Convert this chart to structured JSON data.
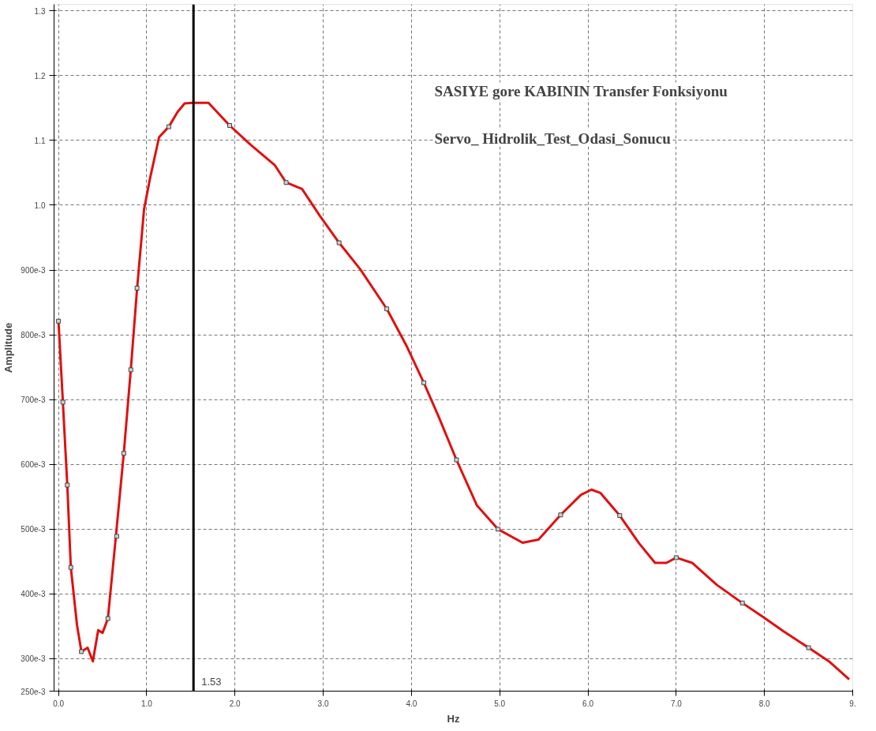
{
  "chart_data": {
    "type": "line",
    "xlabel": "Hz",
    "ylabel": "Amplitude",
    "annotations": [
      "SASIYE gore KABININ Transfer Fonksiyonu",
      "Servo_ Hidrolik_Test_Odasi_Sonucu"
    ],
    "xlim": [
      -0.05,
      9.0
    ],
    "ylim": [
      0.25,
      1.31
    ],
    "xticks": [
      {
        "value": 0,
        "label": "0.0"
      },
      {
        "value": 1,
        "label": "1.0"
      },
      {
        "value": 2,
        "label": "2.0"
      },
      {
        "value": 3,
        "label": "3.0"
      },
      {
        "value": 4,
        "label": "4.0"
      },
      {
        "value": 5,
        "label": "5.0"
      },
      {
        "value": 6,
        "label": "6.0"
      },
      {
        "value": 7,
        "label": "7.0"
      },
      {
        "value": 8,
        "label": "8.0"
      },
      {
        "value": 9,
        "label": "9."
      }
    ],
    "yticks": [
      {
        "value": 0.25,
        "label": "250e-3"
      },
      {
        "value": 0.3,
        "label": "300e-3"
      },
      {
        "value": 0.4,
        "label": "400e-3"
      },
      {
        "value": 0.5,
        "label": "500e-3"
      },
      {
        "value": 0.6,
        "label": "600e-3"
      },
      {
        "value": 0.7,
        "label": "700e-3"
      },
      {
        "value": 0.8,
        "label": "800e-3"
      },
      {
        "value": 0.9,
        "label": "900e-3"
      },
      {
        "value": 1.0,
        "label": "1.0"
      },
      {
        "value": 1.1,
        "label": "1.1"
      },
      {
        "value": 1.2,
        "label": "1.2"
      },
      {
        "value": 1.3,
        "label": "1.3"
      }
    ],
    "grid": true,
    "line_style": "solid",
    "ref_lines": [
      {
        "axis": "x",
        "value": 1.53,
        "label": "1.53",
        "color": "#000000"
      }
    ],
    "series": [
      {
        "color": "#e01010",
        "marker": "none",
        "x": [
          0,
          0.05,
          0.1,
          0.14,
          0.21,
          0.26,
          0.33,
          0.39,
          0.45,
          0.5,
          0.56,
          0.65,
          0.74,
          0.82,
          0.89,
          0.97,
          1.04,
          1.14,
          1.25,
          1.35,
          1.43,
          1.52,
          1.7,
          1.94,
          2.18,
          2.45,
          2.58,
          2.76,
          2.96,
          3.18,
          3.42,
          3.72,
          3.94,
          4.14,
          4.31,
          4.51,
          4.74,
          4.98,
          5.26,
          5.44,
          5.69,
          5.92,
          6.04,
          6.14,
          6.36,
          6.58,
          6.76,
          6.89,
          7.0,
          7.18,
          7.46,
          7.75,
          7.99,
          8.21,
          8.5,
          8.74,
          8.96
        ],
        "values": [
          0.821,
          0.696,
          0.568,
          0.441,
          0.352,
          0.311,
          0.317,
          0.296,
          0.344,
          0.34,
          0.362,
          0.488,
          0.617,
          0.747,
          0.87,
          0.994,
          1.043,
          1.105,
          1.121,
          1.144,
          1.157,
          1.158,
          1.158,
          1.123,
          1.093,
          1.062,
          1.035,
          1.025,
          0.984,
          0.942,
          0.901,
          0.84,
          0.784,
          0.726,
          0.673,
          0.607,
          0.537,
          0.5,
          0.479,
          0.484,
          0.522,
          0.553,
          0.561,
          0.556,
          0.521,
          0.478,
          0.448,
          0.448,
          0.456,
          0.448,
          0.414,
          0.386,
          0.364,
          0.343,
          0.317,
          0.295,
          0.268
        ]
      },
      {
        "type": "scatter",
        "color": "#d0d0d0",
        "marker": "square",
        "x": [
          0,
          0.05,
          0.1,
          0.14,
          0.26,
          0.56,
          0.66,
          0.74,
          0.82,
          0.89,
          1.25,
          1.94,
          2.58,
          3.18,
          3.72,
          4.14,
          4.51,
          4.98,
          5.69,
          6.36,
          7.0,
          7.75,
          8.5
        ],
        "values": [
          0.821,
          0.696,
          0.568,
          0.441,
          0.311,
          0.362,
          0.489,
          0.617,
          0.746,
          0.872,
          1.121,
          1.123,
          1.035,
          0.942,
          0.84,
          0.726,
          0.607,
          0.5,
          0.522,
          0.521,
          0.456,
          0.386,
          0.317
        ]
      }
    ]
  }
}
